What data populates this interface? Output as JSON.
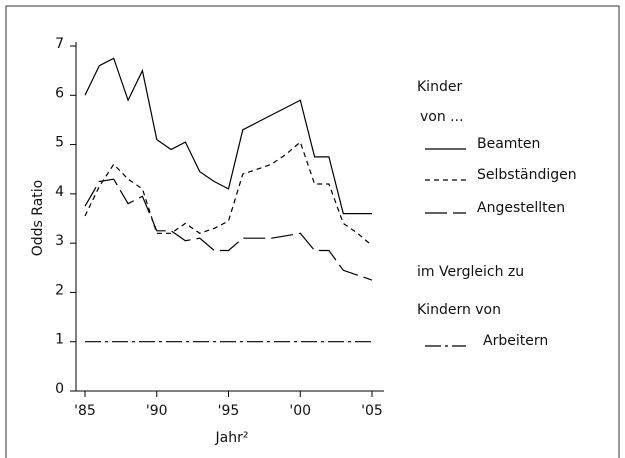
{
  "chart_data": {
    "type": "line",
    "y_label": "Odds Ratio",
    "x_label": "Jahr²",
    "categories": [
      "'85",
      null,
      null,
      null,
      null,
      "'90",
      null,
      null,
      null,
      null,
      "'95",
      null,
      null,
      null,
      null,
      "'00",
      null,
      null,
      null,
      null,
      "'05"
    ],
    "ylim": [
      0,
      7
    ],
    "yticks": [
      0,
      1,
      2,
      3,
      4,
      5,
      6,
      7
    ],
    "legend_heading": "Kinder",
    "legend_subheading": "von ...",
    "legend_note": [
      "im Vergleich zu",
      "Kindern von"
    ],
    "series": [
      {
        "name": "Beamten",
        "color": "#000000",
        "dash": "none",
        "values": [
          6.0,
          6.6,
          6.75,
          5.9,
          6.5,
          5.1,
          4.9,
          5.05,
          4.45,
          4.25,
          4.1,
          5.3,
          5.45,
          5.6,
          5.75,
          5.9,
          4.75,
          4.75,
          3.6,
          3.6,
          3.6
        ]
      },
      {
        "name": "Selbständigen",
        "color": "#000000",
        "dash": "5 4",
        "values": [
          3.55,
          4.15,
          4.6,
          4.3,
          4.1,
          3.2,
          3.2,
          3.4,
          3.2,
          3.3,
          3.45,
          4.4,
          4.5,
          4.6,
          4.8,
          5.05,
          4.2,
          4.2,
          3.4,
          3.2,
          2.95
        ]
      },
      {
        "name": "Angestellten",
        "color": "#000000",
        "dash": "22 6",
        "values": [
          3.75,
          4.25,
          4.3,
          3.8,
          3.95,
          3.25,
          3.25,
          3.05,
          3.1,
          2.85,
          2.85,
          3.1,
          3.1,
          3.1,
          3.15,
          3.2,
          2.85,
          2.85,
          2.45,
          2.35,
          2.25
        ]
      },
      {
        "name": "Arbeitern",
        "color": "#000000",
        "dash": "16 4 3 4",
        "values": [
          1,
          1,
          1,
          1,
          1,
          1,
          1,
          1,
          1,
          1,
          1,
          1,
          1,
          1,
          1,
          1,
          1,
          1,
          1,
          1,
          1
        ]
      }
    ]
  }
}
